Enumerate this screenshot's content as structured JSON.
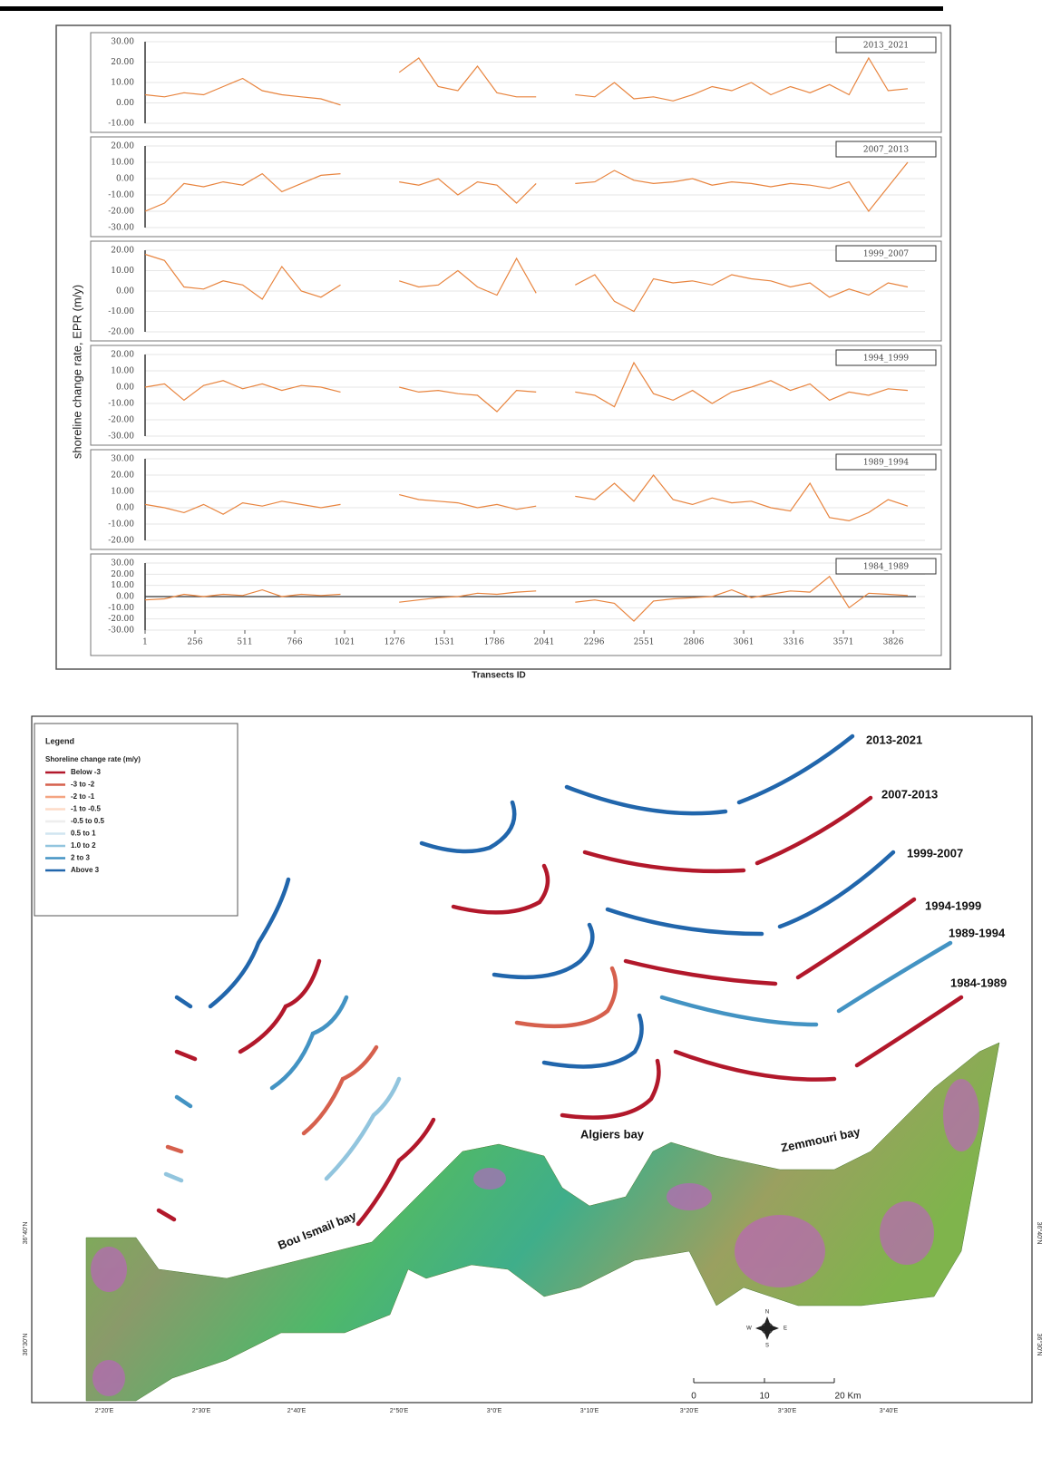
{
  "chart_data": [
    {
      "type": "line",
      "label": "2013_2021",
      "ylabel": "shoreline change rate, EPR (m/y)",
      "x": [
        1,
        100,
        200,
        300,
        400,
        500,
        600,
        700,
        800,
        900,
        1000,
        1100,
        1200,
        1300,
        1400,
        1500,
        1600,
        1700,
        1800,
        1900,
        2000,
        2100,
        2200,
        2300,
        2400,
        2500,
        2600,
        2700,
        2800,
        2900,
        3000,
        3100,
        3200,
        3300,
        3400,
        3500,
        3600,
        3700,
        3800,
        3900
      ],
      "series": [
        {
          "color": "#e8843e",
          "values": [
            4,
            3,
            5,
            4,
            8,
            12,
            6,
            4,
            3,
            2,
            -1,
            null,
            null,
            15,
            22,
            8,
            6,
            18,
            5,
            3,
            3,
            null,
            4,
            3,
            10,
            2,
            3,
            1,
            4,
            8,
            6,
            10,
            4,
            8,
            5,
            9,
            4,
            22,
            6,
            7
          ]
        }
      ],
      "xlim": [
        1,
        3988
      ],
      "ylim": [
        -10,
        30
      ],
      "grid": true,
      "yticks": [
        {
          "value": 30,
          "label": "30.00"
        },
        {
          "value": 20,
          "label": "20.00"
        },
        {
          "value": 10,
          "label": "10.00"
        },
        {
          "value": 0,
          "label": "0.00"
        },
        {
          "value": -10,
          "label": "-10.00"
        }
      ]
    },
    {
      "type": "line",
      "label": "2007_2013",
      "x": [
        1,
        100,
        200,
        300,
        400,
        500,
        600,
        700,
        800,
        900,
        1000,
        1100,
        1200,
        1300,
        1400,
        1500,
        1600,
        1700,
        1800,
        1900,
        2000,
        2100,
        2200,
        2300,
        2400,
        2500,
        2600,
        2700,
        2800,
        2900,
        3000,
        3100,
        3200,
        3300,
        3400,
        3500,
        3600,
        3700,
        3800,
        3900
      ],
      "series": [
        {
          "color": "#e8843e",
          "values": [
            -20,
            -15,
            -3,
            -5,
            -2,
            -4,
            3,
            -8,
            -3,
            2,
            3,
            null,
            null,
            -2,
            -4,
            0,
            -10,
            -2,
            -4,
            -15,
            -3,
            null,
            -3,
            -2,
            5,
            -1,
            -3,
            -2,
            0,
            -4,
            -2,
            -3,
            -5,
            -3,
            -4,
            -6,
            -2,
            -20,
            -5,
            10
          ]
        }
      ],
      "xlim": [
        1,
        3988
      ],
      "ylim": [
        -30,
        20
      ],
      "grid": true,
      "yticks": [
        {
          "value": 20,
          "label": "20.00"
        },
        {
          "value": 10,
          "label": "10.00"
        },
        {
          "value": 0,
          "label": "0.00"
        },
        {
          "value": -10,
          "label": "-10.00"
        },
        {
          "value": -20,
          "label": "-20.00"
        },
        {
          "value": -30,
          "label": "-30.00"
        }
      ]
    },
    {
      "type": "line",
      "label": "1999_2007",
      "x": [
        1,
        100,
        200,
        300,
        400,
        500,
        600,
        700,
        800,
        900,
        1000,
        1100,
        1200,
        1300,
        1400,
        1500,
        1600,
        1700,
        1800,
        1900,
        2000,
        2100,
        2200,
        2300,
        2400,
        2500,
        2600,
        2700,
        2800,
        2900,
        3000,
        3100,
        3200,
        3300,
        3400,
        3500,
        3600,
        3700,
        3800,
        3900
      ],
      "series": [
        {
          "color": "#e8843e",
          "values": [
            18,
            15,
            2,
            1,
            5,
            3,
            -4,
            12,
            0,
            -3,
            3,
            null,
            null,
            5,
            2,
            3,
            10,
            2,
            -2,
            16,
            -1,
            null,
            3,
            8,
            -5,
            -10,
            6,
            4,
            5,
            3,
            8,
            6,
            5,
            2,
            4,
            -3,
            1,
            -2,
            4,
            2
          ]
        }
      ],
      "xlim": [
        1,
        3988
      ],
      "ylim": [
        -20,
        20
      ],
      "grid": true,
      "yticks": [
        {
          "value": 20,
          "label": "20.00"
        },
        {
          "value": 10,
          "label": "10.00"
        },
        {
          "value": 0,
          "label": "0.00"
        },
        {
          "value": -10,
          "label": "-10.00"
        },
        {
          "value": -20,
          "label": "-20.00"
        }
      ]
    },
    {
      "type": "line",
      "label": "1994_1999",
      "x": [
        1,
        100,
        200,
        300,
        400,
        500,
        600,
        700,
        800,
        900,
        1000,
        1100,
        1200,
        1300,
        1400,
        1500,
        1600,
        1700,
        1800,
        1900,
        2000,
        2100,
        2200,
        2300,
        2400,
        2500,
        2600,
        2700,
        2800,
        2900,
        3000,
        3100,
        3200,
        3300,
        3400,
        3500,
        3600,
        3700,
        3800,
        3900
      ],
      "series": [
        {
          "color": "#e8843e",
          "values": [
            0,
            2,
            -8,
            1,
            4,
            -1,
            2,
            -2,
            1,
            0,
            -3,
            null,
            null,
            0,
            -3,
            -2,
            -4,
            -5,
            -15,
            -2,
            -3,
            null,
            -3,
            -5,
            -12,
            15,
            -4,
            -8,
            -2,
            -10,
            -3,
            0,
            4,
            -2,
            2,
            -8,
            -3,
            -5,
            -1,
            -2
          ]
        }
      ],
      "xlim": [
        1,
        3988
      ],
      "ylim": [
        -30,
        20
      ],
      "grid": true,
      "yticks": [
        {
          "value": 20,
          "label": "20.00"
        },
        {
          "value": 10,
          "label": "10.00"
        },
        {
          "value": 0,
          "label": "0.00"
        },
        {
          "value": -10,
          "label": "-10.00"
        },
        {
          "value": -20,
          "label": "-20.00"
        },
        {
          "value": -30,
          "label": "-30.00"
        }
      ]
    },
    {
      "type": "line",
      "label": "1989_1994",
      "x": [
        1,
        100,
        200,
        300,
        400,
        500,
        600,
        700,
        800,
        900,
        1000,
        1100,
        1200,
        1300,
        1400,
        1500,
        1600,
        1700,
        1800,
        1900,
        2000,
        2100,
        2200,
        2300,
        2400,
        2500,
        2600,
        2700,
        2800,
        2900,
        3000,
        3100,
        3200,
        3300,
        3400,
        3500,
        3600,
        3700,
        3800,
        3900
      ],
      "series": [
        {
          "color": "#e8843e",
          "values": [
            2,
            0,
            -3,
            2,
            -4,
            3,
            1,
            4,
            2,
            0,
            2,
            null,
            null,
            8,
            5,
            4,
            3,
            0,
            2,
            -1,
            1,
            null,
            7,
            5,
            15,
            4,
            20,
            5,
            2,
            6,
            3,
            4,
            0,
            -2,
            15,
            -6,
            -8,
            -3,
            5,
            1
          ]
        }
      ],
      "xlim": [
        1,
        3988
      ],
      "ylim": [
        -20,
        30
      ],
      "grid": true,
      "yticks": [
        {
          "value": 30,
          "label": "30.00"
        },
        {
          "value": 20,
          "label": "20.00"
        },
        {
          "value": 10,
          "label": "10.00"
        },
        {
          "value": 0,
          "label": "0.00"
        },
        {
          "value": -10,
          "label": "-10.00"
        },
        {
          "value": -20,
          "label": "-20.00"
        }
      ]
    },
    {
      "type": "line",
      "label": "1984_1989",
      "xlabel": "Transects ID",
      "x": [
        1,
        100,
        200,
        300,
        400,
        500,
        600,
        700,
        800,
        900,
        1000,
        1100,
        1200,
        1300,
        1400,
        1500,
        1600,
        1700,
        1800,
        1900,
        2000,
        2100,
        2200,
        2300,
        2400,
        2500,
        2600,
        2700,
        2800,
        2900,
        3000,
        3100,
        3200,
        3300,
        3400,
        3500,
        3600,
        3700,
        3800,
        3900
      ],
      "series": [
        {
          "color": "#e8843e",
          "values": [
            -3,
            -2,
            2,
            0,
            2,
            1,
            6,
            0,
            2,
            1,
            2,
            null,
            null,
            -5,
            -3,
            -1,
            0,
            3,
            2,
            4,
            5,
            null,
            -5,
            -3,
            -6,
            -22,
            -4,
            -2,
            -1,
            0,
            6,
            -1,
            2,
            5,
            4,
            18,
            -10,
            3,
            2,
            1
          ]
        }
      ],
      "xlim": [
        1,
        3988
      ],
      "ylim": [
        -30,
        30
      ],
      "grid": true,
      "xticks": [
        1,
        256,
        511,
        766,
        1021,
        1276,
        1531,
        1786,
        2041,
        2296,
        2551,
        2806,
        3061,
        3316,
        3571,
        3826
      ],
      "yticks": [
        {
          "value": 30,
          "label": "30.00"
        },
        {
          "value": 20,
          "label": "20.00"
        },
        {
          "value": 10,
          "label": "10.00"
        },
        {
          "value": 0,
          "label": "0.00"
        },
        {
          "value": -10,
          "label": "-10.00"
        },
        {
          "value": -20,
          "label": "-20.00"
        },
        {
          "value": -30,
          "label": "-30.00"
        }
      ]
    }
  ],
  "map": {
    "legend_title": "Legend",
    "legend_subtitle": "Shoreline change rate (m/y)",
    "legend_items": [
      {
        "label": "Below -3",
        "color": "#b2182b"
      },
      {
        "label": "-3 to -2",
        "color": "#d6604d"
      },
      {
        "label": "-2 to -1",
        "color": "#f4a582"
      },
      {
        "label": "-1 to -0.5",
        "color": "#fddbc7"
      },
      {
        "label": "-0.5 to 0.5",
        "color": "#eeeeee"
      },
      {
        "label": "0.5 to 1",
        "color": "#d1e5f0"
      },
      {
        "label": "1.0 to 2",
        "color": "#92c5de"
      },
      {
        "label": "2 to 3",
        "color": "#4393c3"
      },
      {
        "label": "Above 3",
        "color": "#2166ac"
      }
    ],
    "periods": [
      "2013-2021",
      "2007-2013",
      "1999-2007",
      "1994-1999",
      "1989-1994",
      "1984-1989"
    ],
    "bays": [
      "Bou Ismail bay",
      "Algiers bay",
      "Zemmouri bay"
    ],
    "scale": [
      "0",
      "10",
      "20 Km"
    ],
    "compass": [
      "N",
      "S",
      "E",
      "W"
    ],
    "lon_labels": [
      "2°20'E",
      "2°30'E",
      "2°40'E",
      "2°50'E",
      "3°0'E",
      "3°10'E",
      "3°20'E",
      "3°30'E",
      "3°40'E"
    ],
    "lat_labels": [
      "36°40'N",
      "36°30'N"
    ]
  }
}
